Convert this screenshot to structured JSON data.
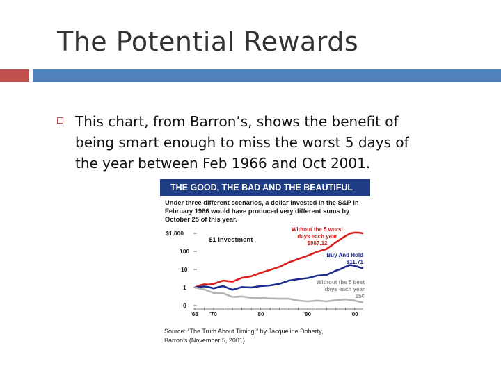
{
  "slide": {
    "title": "The Potential Rewards",
    "bullet": "This chart, from Barron’s, shows the benefit of\nbeing smart enough to miss the worst 5 days of\nthe year between Feb 1966 and Oct 2001.",
    "source": "Source: “The Truth About Timing,” by Jacqueline Doherty,\nBarron’s (November 5, 2001)"
  },
  "colors": {
    "accent_red": "#c0504d",
    "accent_blue": "#4f81bd",
    "header_navy": "#1f3e86"
  },
  "chart_data": {
    "type": "line",
    "title": "THE GOOD, THE BAD AND THE BEAUTIFUL",
    "subtitle": "Under three different scenarios, a dollar invested in the S&P in\nFebruary 1966 would have produced very different sums by\nOctober 25 of this year.",
    "y_scale": "log",
    "y_ticks": [
      {
        "value": 1000,
        "label": "$1,000"
      },
      {
        "value": 100,
        "label": "100"
      },
      {
        "value": 10,
        "label": "10"
      },
      {
        "value": 1,
        "label": "1"
      },
      {
        "value": 0.1,
        "label": "0"
      }
    ],
    "x_ticks": [
      {
        "value": 1966,
        "label": "'66"
      },
      {
        "value": 1970,
        "label": "'70"
      },
      {
        "value": 1980,
        "label": "'80"
      },
      {
        "value": 1990,
        "label": "'90"
      },
      {
        "value": 2000,
        "label": "'00"
      }
    ],
    "xlim": [
      1966,
      2001.8
    ],
    "ylim": [
      0.1,
      1000
    ],
    "annotation": "$1 Investment",
    "series": [
      {
        "label": "Without the 5 worst\ndays each year\n$987.12",
        "color": "#d81e1e",
        "x": [
          1966,
          1967,
          1968,
          1969,
          1970,
          1972,
          1974,
          1976,
          1978,
          1980,
          1982,
          1984,
          1986,
          1988,
          1990,
          1992,
          1994,
          1996,
          1997,
          1998,
          1999,
          2000,
          2001,
          2001.8
        ],
        "y": [
          1,
          1.3,
          1.5,
          1.45,
          1.6,
          2.4,
          2.1,
          3.4,
          4.2,
          6.5,
          9.5,
          14,
          25,
          38,
          58,
          95,
          135,
          320,
          480,
          700,
          980,
          1100,
          1080,
          987.12
        ]
      },
      {
        "label": "Buy And Hold\n$11.71",
        "color": "#1c2a8c",
        "x": [
          1966,
          1968,
          1969,
          1970,
          1972,
          1974,
          1976,
          1978,
          1980,
          1982,
          1984,
          1986,
          1988,
          1990,
          1992,
          1994,
          1996,
          1997,
          1998,
          1999,
          2000,
          2001,
          2001.8
        ],
        "y": [
          1,
          1.15,
          1.05,
          0.9,
          1.2,
          0.75,
          1.05,
          1.0,
          1.2,
          1.3,
          1.6,
          2.4,
          2.9,
          3.3,
          4.5,
          5.0,
          8.5,
          10.5,
          14,
          17.5,
          16,
          13,
          11.71
        ]
      },
      {
        "label": "Without the 5 best\ndays each year\n15¢",
        "color": "#b5b5b5",
        "x": [
          1966,
          1968,
          1970,
          1972,
          1974,
          1976,
          1978,
          1980,
          1982,
          1984,
          1986,
          1988,
          1990,
          1992,
          1994,
          1996,
          1998,
          2000,
          2001,
          2001.8
        ],
        "y": [
          1,
          0.78,
          0.5,
          0.48,
          0.3,
          0.32,
          0.27,
          0.26,
          0.25,
          0.24,
          0.24,
          0.19,
          0.17,
          0.19,
          0.17,
          0.2,
          0.22,
          0.19,
          0.16,
          0.15
        ]
      }
    ]
  }
}
